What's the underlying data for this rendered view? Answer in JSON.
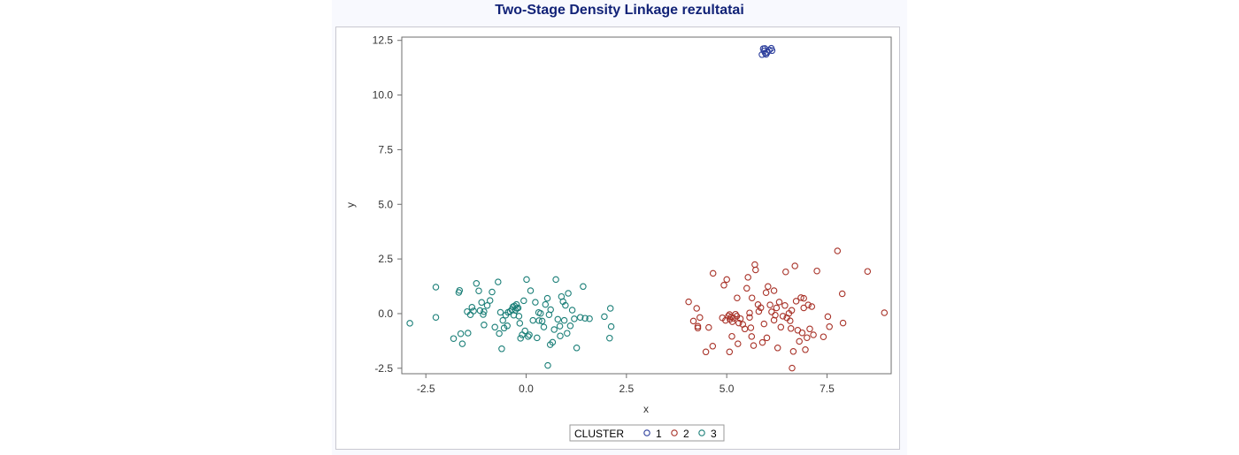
{
  "chart_data": {
    "type": "scatter",
    "title": "Two-Stage Density Linkage rezultatai",
    "xlabel": "x",
    "ylabel": "y",
    "xlim": [
      -3.1,
      9.1
    ],
    "ylim": [
      -2.75,
      12.65
    ],
    "xticks": [
      -2.5,
      0.0,
      2.5,
      5.0,
      7.5
    ],
    "yticks": [
      -2.5,
      0.0,
      2.5,
      5.0,
      7.5,
      10.0,
      12.5
    ],
    "grid": false,
    "legend": {
      "title": "CLUSTER",
      "position": "bottom-center"
    },
    "colors": {
      "1": "#2c3e9c",
      "2": "#a83228",
      "3": "#1b7f78"
    },
    "series": [
      {
        "name": "1",
        "points": [
          [
            5.88,
            11.85
          ],
          [
            5.93,
            12.02
          ],
          [
            5.96,
            11.92
          ],
          [
            5.98,
            11.86
          ],
          [
            5.91,
            12.12
          ],
          [
            6.06,
            12.06
          ],
          [
            6.11,
            12.14
          ],
          [
            6.13,
            12.03
          ],
          [
            5.95,
            12.13
          ],
          [
            6.01,
            11.95
          ]
        ]
      },
      {
        "name": "2",
        "points": [
          [
            4.05,
            0.54
          ],
          [
            4.17,
            -0.34
          ],
          [
            4.25,
            0.24
          ],
          [
            4.28,
            -0.66
          ],
          [
            4.33,
            -0.18
          ],
          [
            4.28,
            -0.58
          ],
          [
            4.48,
            -1.75
          ],
          [
            4.55,
            -0.63
          ],
          [
            4.65,
            -1.49
          ],
          [
            4.66,
            1.84
          ],
          [
            4.89,
            -0.19
          ],
          [
            4.93,
            1.3
          ],
          [
            4.97,
            -0.31
          ],
          [
            5.0,
            1.56
          ],
          [
            5.04,
            -0.11
          ],
          [
            5.07,
            -0.04
          ],
          [
            5.08,
            -0.26
          ],
          [
            5.11,
            -0.16
          ],
          [
            5.13,
            -1.04
          ],
          [
            5.14,
            -0.37
          ],
          [
            5.17,
            -0.21
          ],
          [
            5.22,
            -0.03
          ],
          [
            5.25,
            -0.12
          ],
          [
            5.28,
            -1.38
          ],
          [
            5.3,
            -0.43
          ],
          [
            5.34,
            -0.23
          ],
          [
            5.4,
            -0.49
          ],
          [
            5.45,
            -0.7
          ],
          [
            5.5,
            1.16
          ],
          [
            5.53,
            1.66
          ],
          [
            5.57,
            0.03
          ],
          [
            5.57,
            -0.17
          ],
          [
            5.6,
            -0.65
          ],
          [
            5.62,
            -1.05
          ],
          [
            5.67,
            -1.46
          ],
          [
            5.7,
            2.24
          ],
          [
            5.72,
            2.0
          ],
          [
            5.78,
            0.41
          ],
          [
            5.8,
            0.1
          ],
          [
            5.85,
            0.27
          ],
          [
            5.89,
            -1.32
          ],
          [
            5.93,
            -0.47
          ],
          [
            5.98,
            0.96
          ],
          [
            6.0,
            -1.11
          ],
          [
            6.03,
            1.24
          ],
          [
            6.08,
            0.4
          ],
          [
            6.12,
            0.08
          ],
          [
            6.18,
            1.05
          ],
          [
            6.21,
            -0.07
          ],
          [
            6.24,
            0.26
          ],
          [
            6.27,
            -1.57
          ],
          [
            6.31,
            0.53
          ],
          [
            6.35,
            -0.62
          ],
          [
            6.4,
            -0.12
          ],
          [
            6.45,
            0.37
          ],
          [
            6.47,
            1.91
          ],
          [
            6.5,
            -0.19
          ],
          [
            6.55,
            0.01
          ],
          [
            6.58,
            -0.33
          ],
          [
            6.6,
            -0.68
          ],
          [
            6.62,
            0.15
          ],
          [
            6.66,
            -1.73
          ],
          [
            6.7,
            2.18
          ],
          [
            6.73,
            0.57
          ],
          [
            6.77,
            -0.76
          ],
          [
            6.81,
            -1.27
          ],
          [
            6.85,
            0.73
          ],
          [
            6.88,
            -0.88
          ],
          [
            6.92,
            0.7
          ],
          [
            6.96,
            -1.65
          ],
          [
            7.0,
            -1.1
          ],
          [
            7.03,
            0.4
          ],
          [
            7.07,
            -0.7
          ],
          [
            7.12,
            0.32
          ],
          [
            7.16,
            -0.97
          ],
          [
            7.25,
            1.95
          ],
          [
            7.41,
            -1.06
          ],
          [
            7.52,
            -0.14
          ],
          [
            7.56,
            -0.6
          ],
          [
            7.76,
            2.87
          ],
          [
            7.88,
            0.91
          ],
          [
            7.9,
            -0.43
          ],
          [
            8.51,
            1.93
          ],
          [
            8.93,
            0.04
          ],
          [
            6.63,
            -2.49
          ],
          [
            5.07,
            -1.75
          ],
          [
            5.63,
            0.72
          ],
          [
            6.18,
            -0.3
          ],
          [
            6.92,
            0.26
          ],
          [
            5.26,
            0.72
          ]
        ]
      },
      {
        "name": "3",
        "points": [
          [
            -2.9,
            -0.44
          ],
          [
            -2.25,
            1.21
          ],
          [
            -2.25,
            -0.17
          ],
          [
            -1.81,
            -1.14
          ],
          [
            -1.68,
            0.97
          ],
          [
            -1.66,
            1.06
          ],
          [
            -1.63,
            -0.92
          ],
          [
            -1.59,
            -1.38
          ],
          [
            -1.47,
            0.09
          ],
          [
            -1.45,
            -0.89
          ],
          [
            -1.39,
            -0.05
          ],
          [
            -1.35,
            0.29
          ],
          [
            -1.31,
            0.12
          ],
          [
            -1.24,
            1.38
          ],
          [
            -1.18,
            1.04
          ],
          [
            -1.15,
            0.14
          ],
          [
            -1.11,
            0.51
          ],
          [
            -1.07,
            -0.04
          ],
          [
            -1.05,
            -0.52
          ],
          [
            -0.97,
            0.37
          ],
          [
            -0.9,
            0.6
          ],
          [
            -0.85,
            0.99
          ],
          [
            -0.7,
            1.45
          ],
          [
            -0.67,
            -0.91
          ],
          [
            -0.64,
            0.06
          ],
          [
            -0.61,
            -1.61
          ],
          [
            -0.58,
            -0.31
          ],
          [
            -0.55,
            -0.66
          ],
          [
            -0.51,
            -0.07
          ],
          [
            -0.47,
            -0.56
          ],
          [
            -0.45,
            0.06
          ],
          [
            -0.4,
            0.1
          ],
          [
            -0.36,
            0.18
          ],
          [
            -0.33,
            0.31
          ],
          [
            -0.31,
            -0.07
          ],
          [
            -0.29,
            0.35
          ],
          [
            -0.27,
            0.15
          ],
          [
            -0.24,
            0.42
          ],
          [
            -0.23,
            0.24
          ],
          [
            -0.2,
            0.26
          ],
          [
            -0.18,
            -0.12
          ],
          [
            -0.16,
            -0.44
          ],
          [
            -0.14,
            -1.13
          ],
          [
            -0.1,
            -0.97
          ],
          [
            -0.06,
            0.59
          ],
          [
            -0.03,
            -0.79
          ],
          [
            0.01,
            1.56
          ],
          [
            0.05,
            -1.05
          ],
          [
            0.08,
            -0.97
          ],
          [
            0.11,
            1.05
          ],
          [
            0.17,
            -0.31
          ],
          [
            0.23,
            0.52
          ],
          [
            0.27,
            -1.11
          ],
          [
            0.31,
            0.05
          ],
          [
            0.36,
            0.01
          ],
          [
            0.4,
            -0.34
          ],
          [
            0.44,
            -0.61
          ],
          [
            0.48,
            0.42
          ],
          [
            0.53,
            0.7
          ],
          [
            0.57,
            -0.05
          ],
          [
            0.61,
            0.18
          ],
          [
            0.66,
            -1.31
          ],
          [
            0.7,
            -0.73
          ],
          [
            0.74,
            1.56
          ],
          [
            0.79,
            -0.26
          ],
          [
            0.84,
            -0.57
          ],
          [
            0.88,
            0.78
          ],
          [
            0.92,
            0.55
          ],
          [
            0.95,
            -0.31
          ],
          [
            0.98,
            0.38
          ],
          [
            1.02,
            -0.9
          ],
          [
            1.05,
            0.93
          ],
          [
            1.1,
            -0.56
          ],
          [
            1.15,
            0.16
          ],
          [
            1.2,
            -0.24
          ],
          [
            1.26,
            -1.57
          ],
          [
            1.35,
            -0.17
          ],
          [
            1.42,
            1.24
          ],
          [
            1.47,
            -0.21
          ],
          [
            1.58,
            -0.23
          ],
          [
            1.95,
            -0.14
          ],
          [
            2.08,
            -1.12
          ],
          [
            2.1,
            0.24
          ],
          [
            2.12,
            -0.59
          ],
          [
            0.54,
            -2.37
          ],
          [
            -0.78,
            -0.62
          ],
          [
            0.6,
            -1.42
          ],
          [
            0.85,
            -1.02
          ],
          [
            -1.05,
            0.09
          ],
          [
            0.32,
            -0.32
          ]
        ]
      }
    ]
  }
}
